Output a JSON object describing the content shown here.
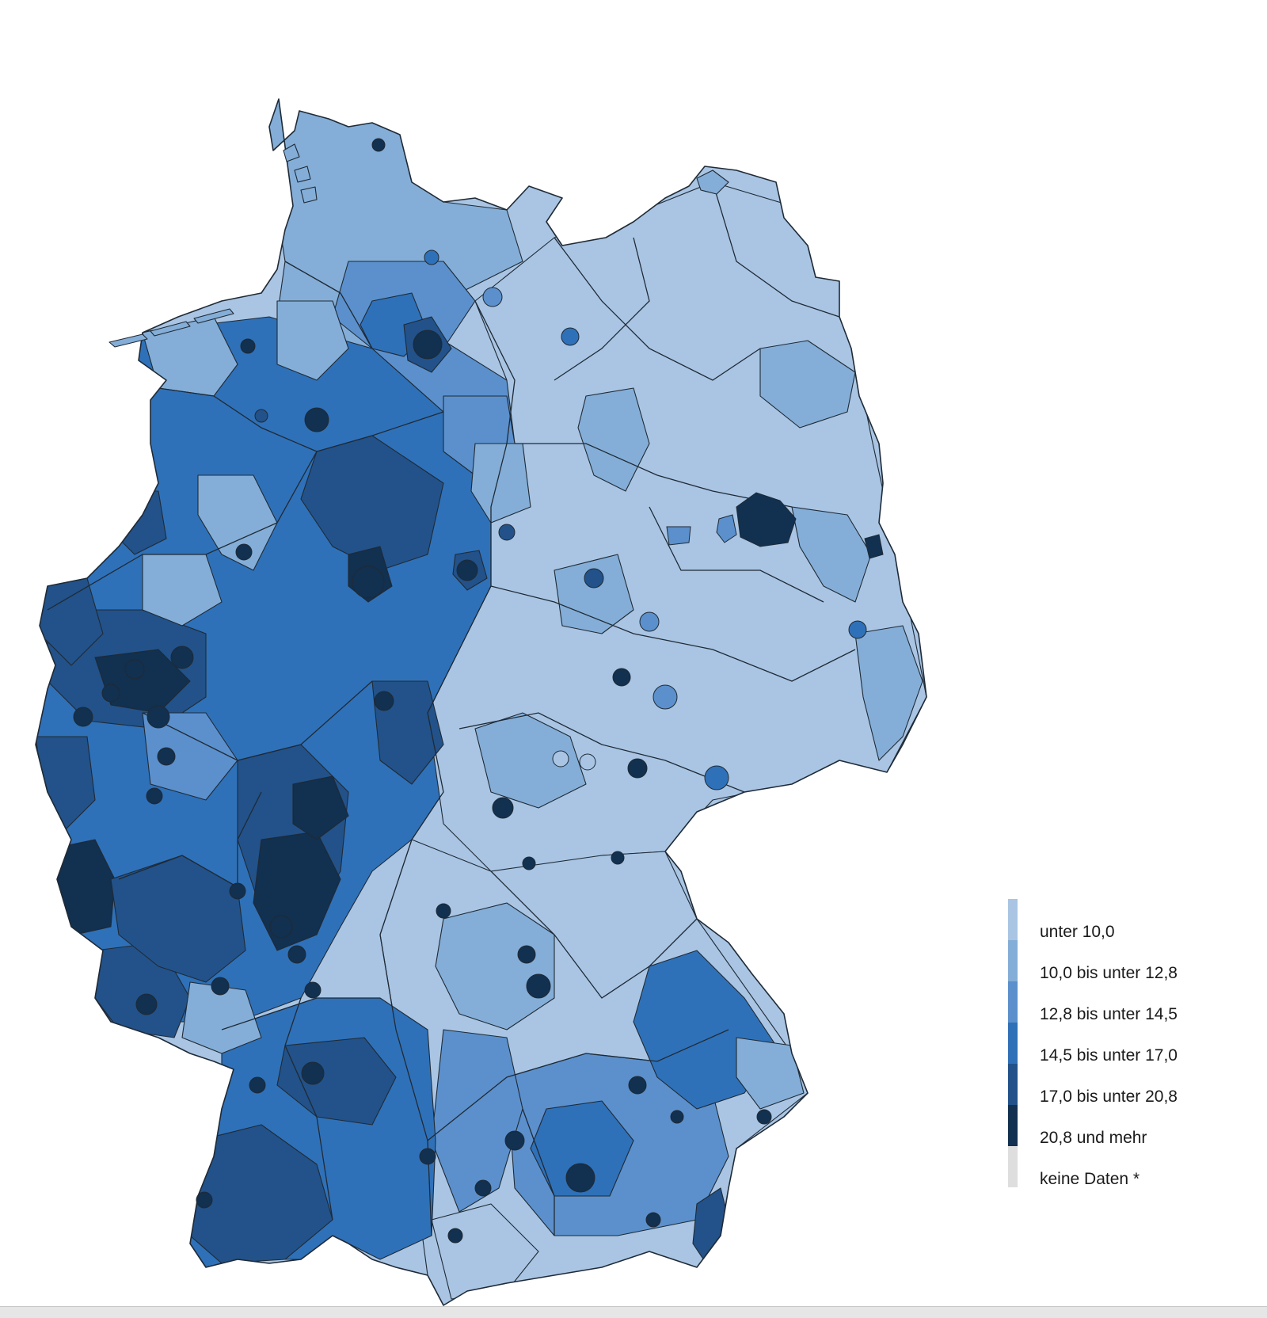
{
  "colors": {
    "c1": "#a9c5e3",
    "c2": "#84aed7",
    "c3": "#5b90cc",
    "c4": "#2f71b8",
    "c5": "#225289",
    "c6": "#12304f",
    "nodata": "#dedede"
  },
  "legend": [
    {
      "label": "unter 10,0",
      "color": "#a9c5e3"
    },
    {
      "label": "10,0 bis unter 12,8",
      "color": "#84aed7"
    },
    {
      "label": "12,8 bis unter 14,5",
      "color": "#5b90cc"
    },
    {
      "label": "14,5 bis unter 17,0",
      "color": "#2f71b8"
    },
    {
      "label": "17,0 bis unter 20,8",
      "color": "#225289"
    },
    {
      "label": "20,8 und mehr",
      "color": "#12304f"
    },
    {
      "label": "keine Daten *",
      "color": "#dedede"
    }
  ]
}
